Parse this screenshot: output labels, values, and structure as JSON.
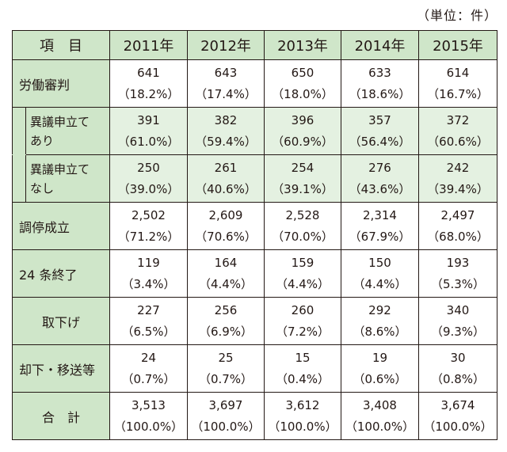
{
  "unit": "（単位：件）",
  "header": {
    "item": "項　目",
    "years": [
      "2011年",
      "2012年",
      "2013年",
      "2014年",
      "2015年"
    ]
  },
  "rows": [
    {
      "label": "労働審判",
      "values": [
        [
          "641",
          "（18.2%）"
        ],
        [
          "643",
          "（17.4%）"
        ],
        [
          "650",
          "（18.0%）"
        ],
        [
          "633",
          "（18.6%）"
        ],
        [
          "614",
          "（16.7%）"
        ]
      ]
    },
    {
      "label": [
        "異議申立て",
        "あり"
      ],
      "values": [
        [
          "391",
          "（61.0%）"
        ],
        [
          "382",
          "（59.4%）"
        ],
        [
          "396",
          "（60.9%）"
        ],
        [
          "357",
          "（56.4%）"
        ],
        [
          "372",
          "（60.6%）"
        ]
      ]
    },
    {
      "label": [
        "異議申立て",
        "なし"
      ],
      "values": [
        [
          "250",
          "（39.0%）"
        ],
        [
          "261",
          "（40.6%）"
        ],
        [
          "254",
          "（39.1%）"
        ],
        [
          "276",
          "（43.6%）"
        ],
        [
          "242",
          "（39.4%）"
        ]
      ]
    },
    {
      "label": "調停成立",
      "values": [
        [
          "2,502",
          "（71.2%）"
        ],
        [
          "2,609",
          "（70.6%）"
        ],
        [
          "2,528",
          "（70.0%）"
        ],
        [
          "2,314",
          "（67.9%）"
        ],
        [
          "2,497",
          "（68.0%）"
        ]
      ]
    },
    {
      "label": "24 条終了",
      "values": [
        [
          "119",
          "（3.4%）"
        ],
        [
          "164",
          "（4.4%）"
        ],
        [
          "159",
          "（4.4%）"
        ],
        [
          "150",
          "（4.4%）"
        ],
        [
          "193",
          "（5.3%）"
        ]
      ]
    },
    {
      "label": "取下げ",
      "values": [
        [
          "227",
          "（6.5%）"
        ],
        [
          "256",
          "（6.9%）"
        ],
        [
          "260",
          "（7.2%）"
        ],
        [
          "292",
          "（8.6%）"
        ],
        [
          "340",
          "（9.3%）"
        ]
      ]
    },
    {
      "label": "却下・移送等",
      "values": [
        [
          "24",
          "（0.7%）"
        ],
        [
          "25",
          "（0.7%）"
        ],
        [
          "15",
          "（0.4%）"
        ],
        [
          "19",
          "（0.6%）"
        ],
        [
          "30",
          "（0.8%）"
        ]
      ]
    },
    {
      "label": "合　計",
      "values": [
        [
          "3,513",
          "（100.0%）"
        ],
        [
          "3,697",
          "（100.0%）"
        ],
        [
          "3,612",
          "（100.0%）"
        ],
        [
          "3,408",
          "（100.0%）"
        ],
        [
          "3,674",
          "（100.0%）"
        ]
      ]
    }
  ],
  "colors": {
    "header_bg": "#cfe6c9",
    "sub_row_bg": "#e4f1e1",
    "border": "#231815"
  }
}
